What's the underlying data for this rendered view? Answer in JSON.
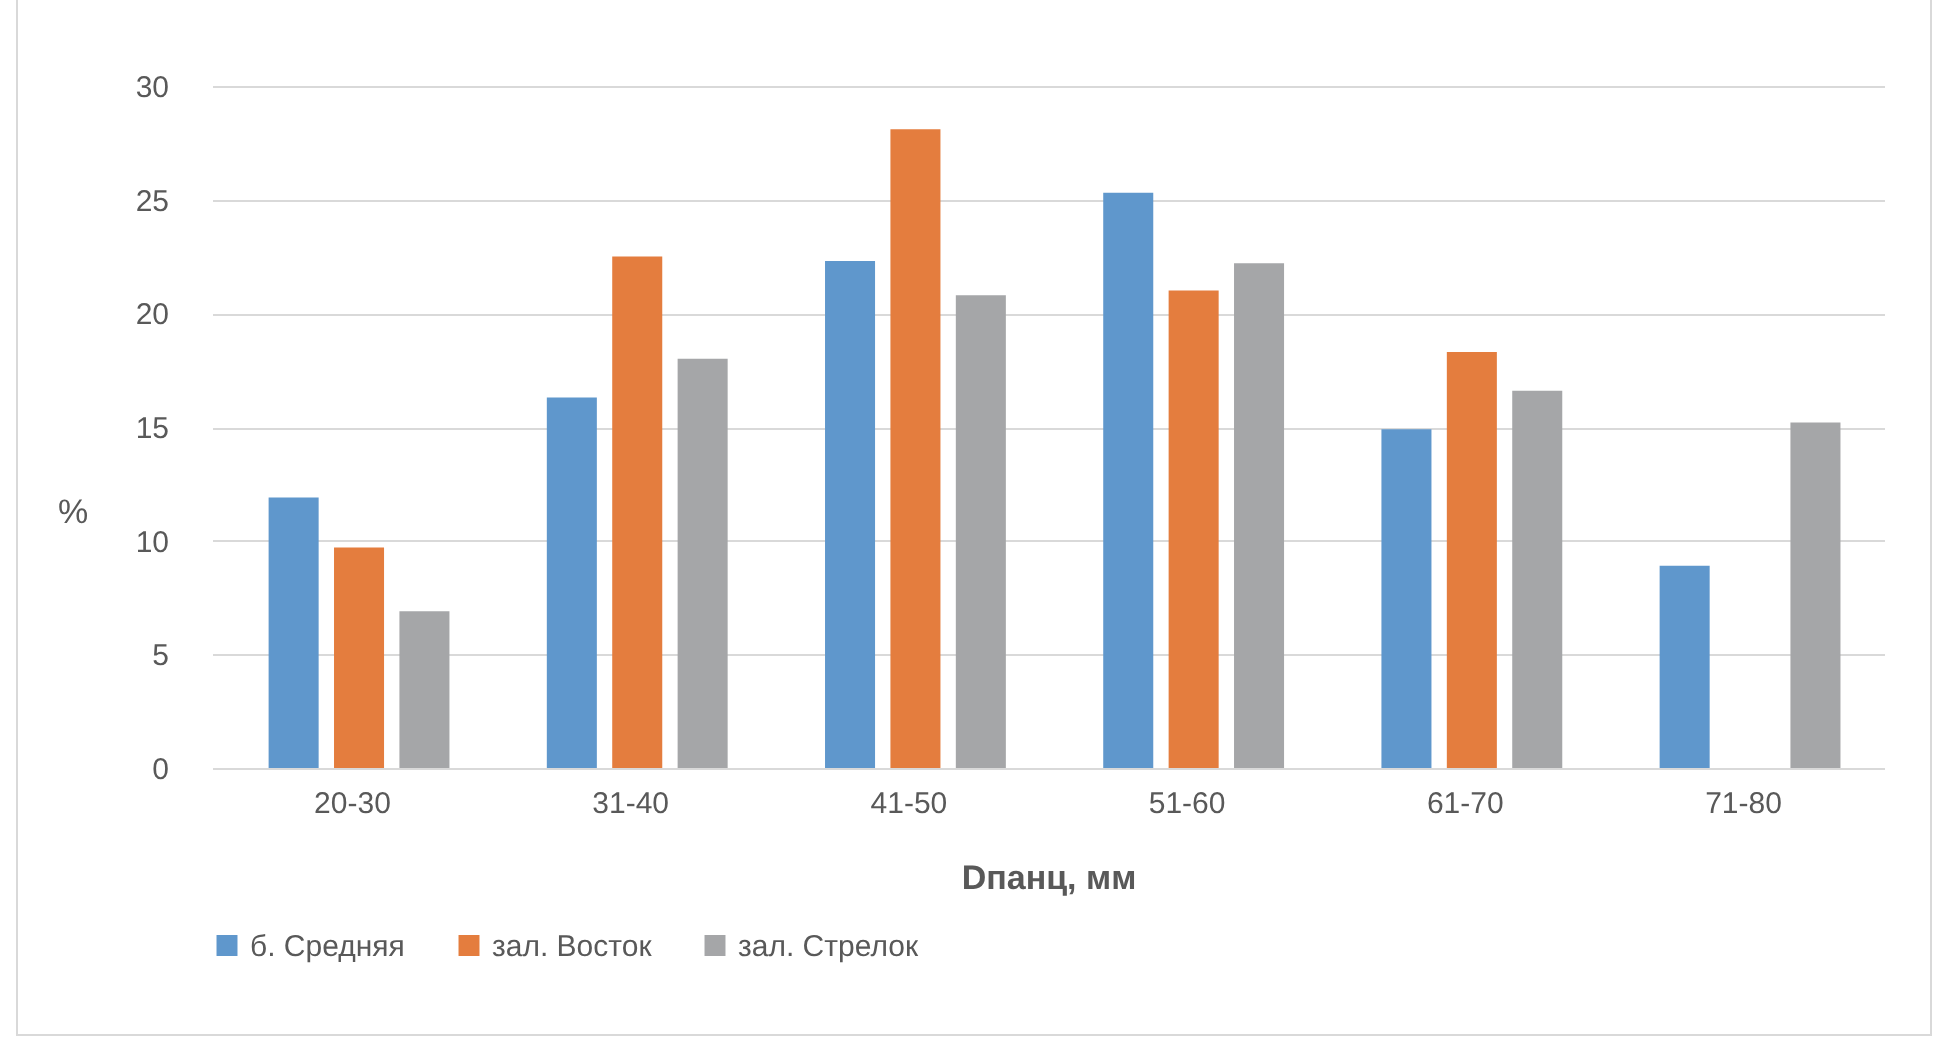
{
  "chart_data": {
    "type": "bar",
    "xlabel": "Dпанц, мм",
    "ylabel": "%",
    "categories": [
      "20-30",
      "31-40",
      "41-50",
      "51-60",
      "61-70",
      "71-80"
    ],
    "series": [
      {
        "name": "б. Средняя",
        "color": "#5f97cc",
        "values": [
          11.9,
          16.3,
          22.3,
          25.3,
          14.9,
          8.9
        ]
      },
      {
        "name": "зал. Восток",
        "color": "#e47d3e",
        "values": [
          9.7,
          22.5,
          28.1,
          21.0,
          18.3,
          null
        ]
      },
      {
        "name": "зал. Стрелок",
        "color": "#a5a6a8",
        "values": [
          6.9,
          18.0,
          20.8,
          22.2,
          16.6,
          15.2
        ]
      }
    ],
    "ylim": [
      0,
      30
    ],
    "yticks": [
      0,
      5,
      10,
      15,
      20,
      25,
      30
    ],
    "grid": "y",
    "legend": "bottom"
  }
}
